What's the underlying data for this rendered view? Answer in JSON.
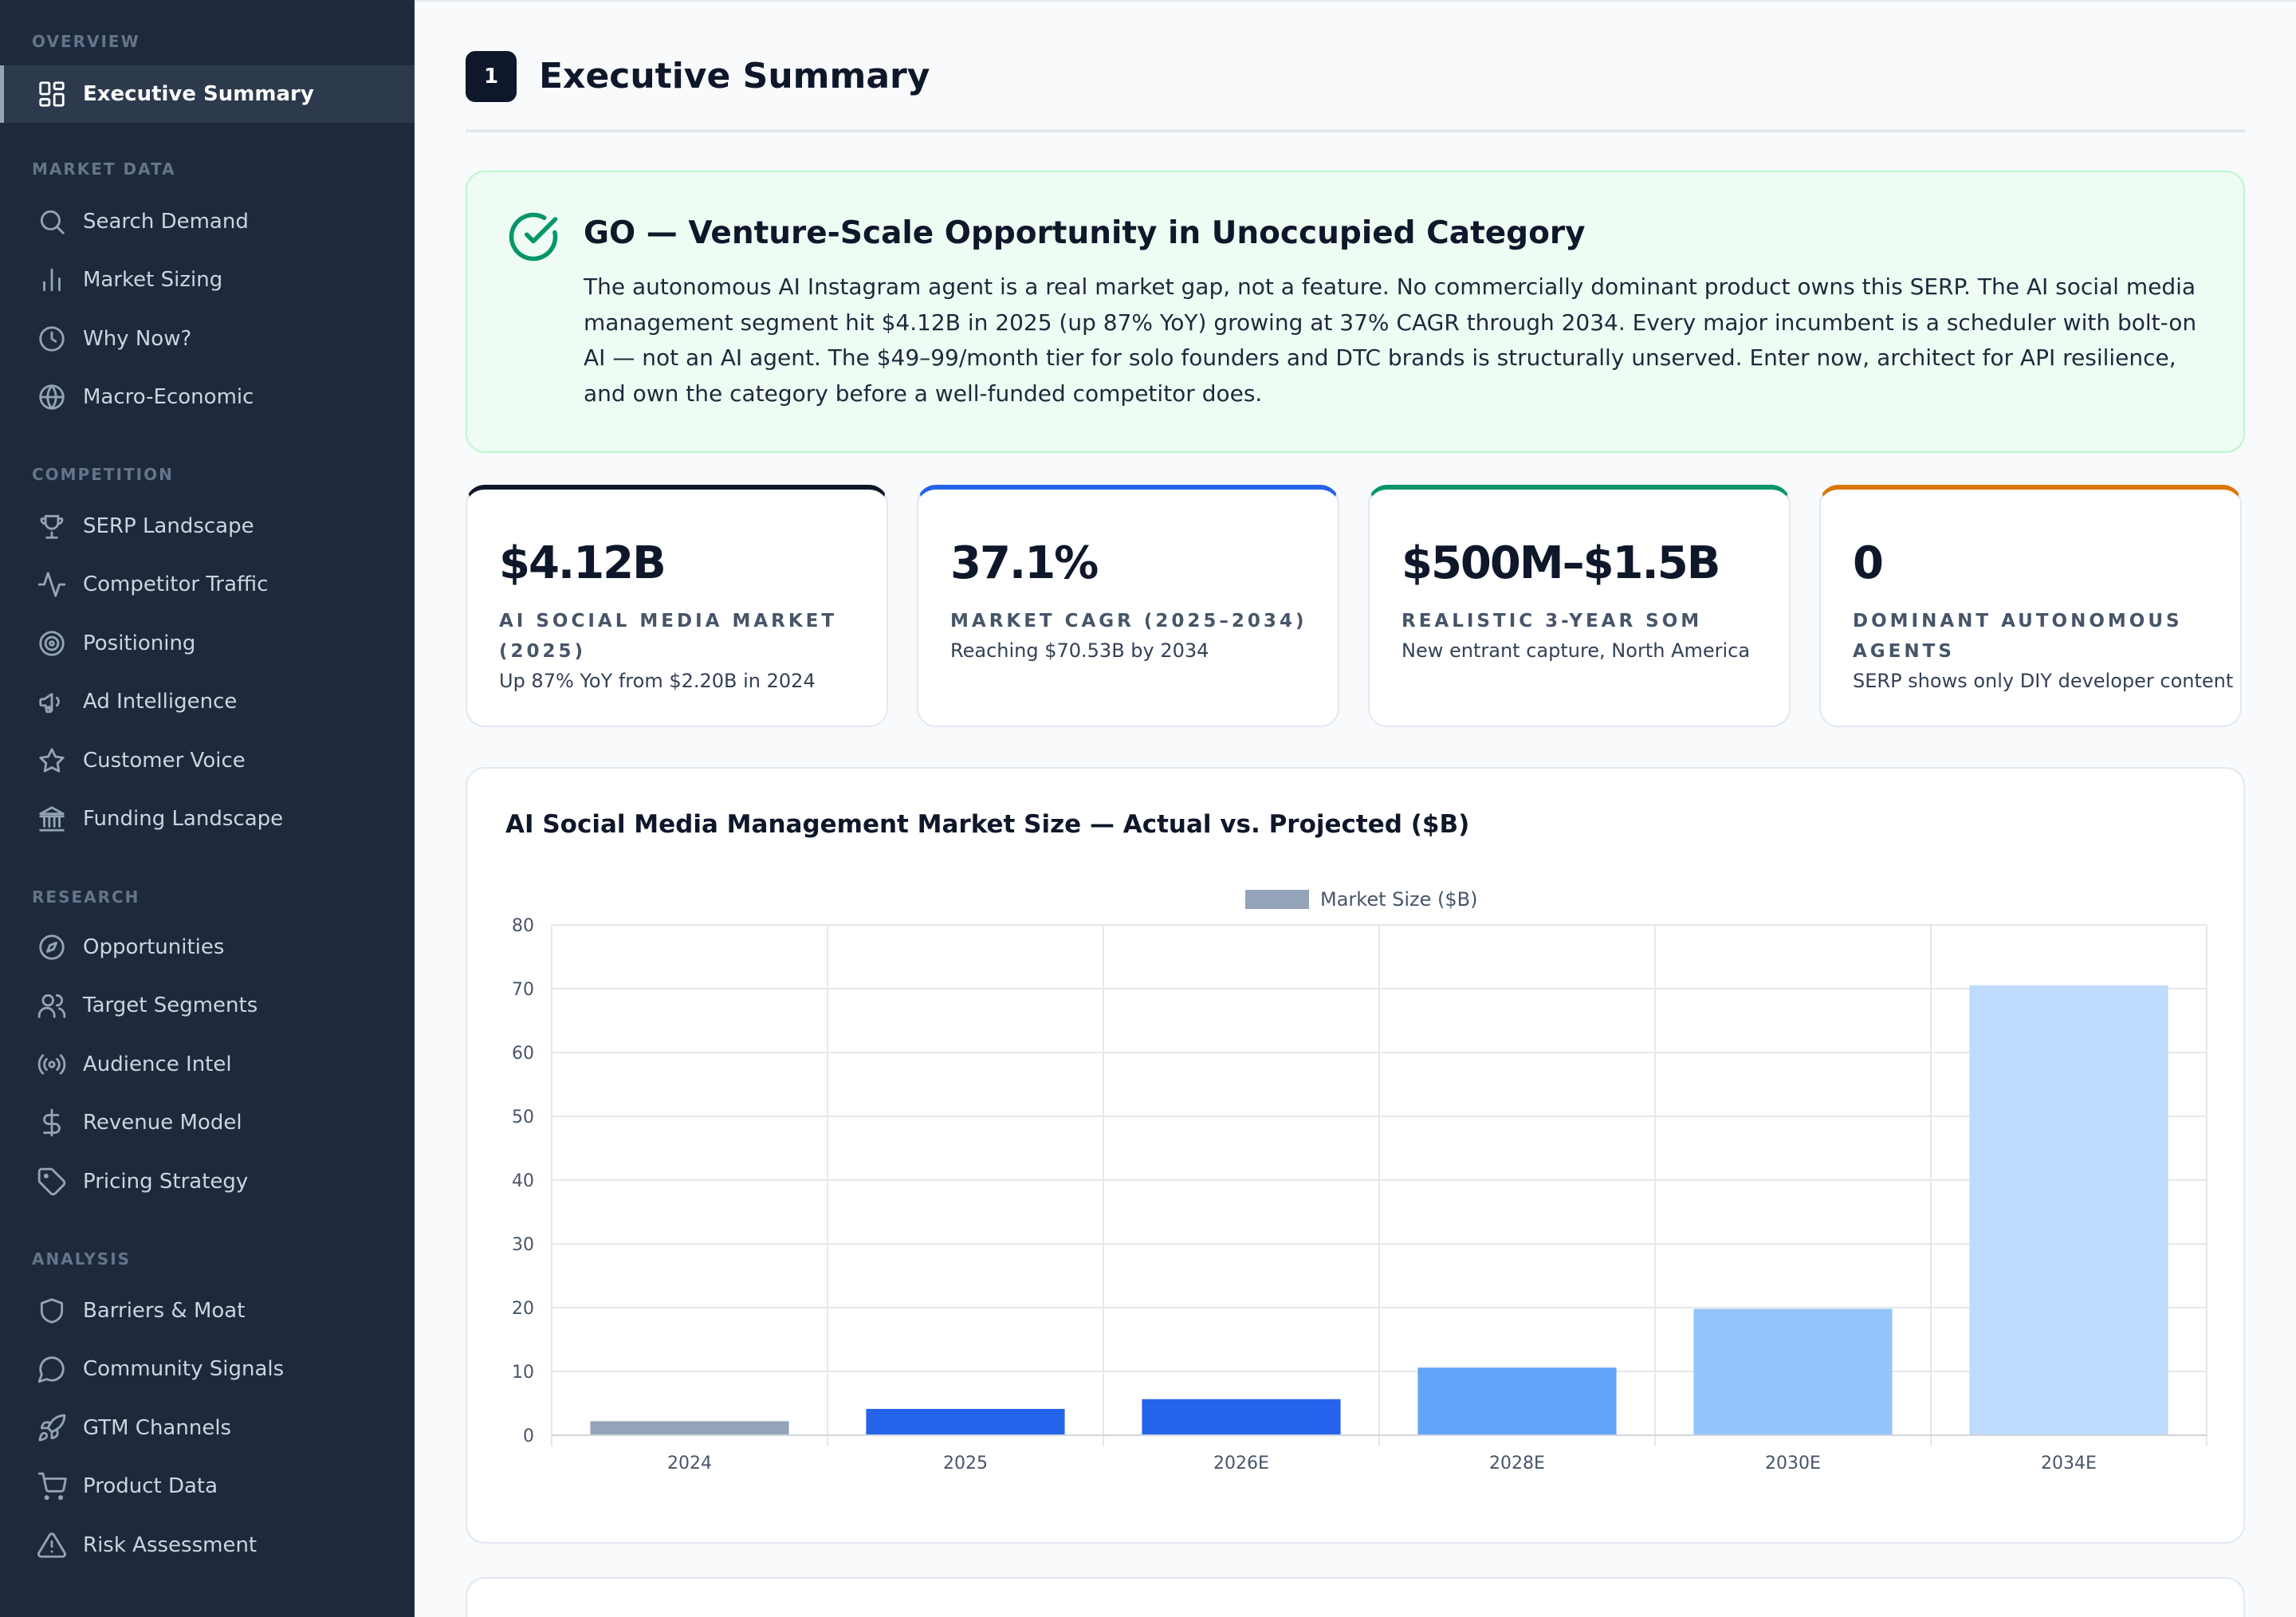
{
  "sidebar": {
    "groups": [
      {
        "title": "OVERVIEW",
        "items": [
          {
            "label": "Executive Summary",
            "icon": "dashboard-icon",
            "active": true
          }
        ]
      },
      {
        "title": "MARKET DATA",
        "items": [
          {
            "label": "Search Demand",
            "icon": "search-icon"
          },
          {
            "label": "Market Sizing",
            "icon": "bar-chart-icon"
          },
          {
            "label": "Why Now?",
            "icon": "clock-icon"
          },
          {
            "label": "Macro-Economic",
            "icon": "globe-icon"
          }
        ]
      },
      {
        "title": "COMPETITION",
        "items": [
          {
            "label": "SERP Landscape",
            "icon": "trophy-icon"
          },
          {
            "label": "Competitor Traffic",
            "icon": "activity-icon"
          },
          {
            "label": "Positioning",
            "icon": "target-icon"
          },
          {
            "label": "Ad Intelligence",
            "icon": "megaphone-icon"
          },
          {
            "label": "Customer Voice",
            "icon": "star-icon"
          },
          {
            "label": "Funding Landscape",
            "icon": "bank-icon"
          }
        ]
      },
      {
        "title": "RESEARCH",
        "items": [
          {
            "label": "Opportunities",
            "icon": "compass-icon"
          },
          {
            "label": "Target Segments",
            "icon": "users-icon"
          },
          {
            "label": "Audience Intel",
            "icon": "radio-icon"
          },
          {
            "label": "Revenue Model",
            "icon": "dollar-icon"
          },
          {
            "label": "Pricing Strategy",
            "icon": "tag-icon"
          }
        ]
      },
      {
        "title": "ANALYSIS",
        "items": [
          {
            "label": "Barriers & Moat",
            "icon": "shield-icon"
          },
          {
            "label": "Community Signals",
            "icon": "chat-bubble-icon"
          },
          {
            "label": "GTM Channels",
            "icon": "rocket-icon"
          },
          {
            "label": "Product Data",
            "icon": "cart-icon"
          },
          {
            "label": "Risk Assessment",
            "icon": "warning-icon"
          }
        ]
      }
    ]
  },
  "section": {
    "number": "1",
    "title": "Executive Summary"
  },
  "verdict": {
    "icon": "check-circle-icon",
    "title": "GO — Venture-Scale Opportunity in Unoccupied Category",
    "body": "The autonomous AI Instagram agent is a real market gap, not a feature. No commercially dominant product owns this SERP. The AI social media management segment hit $4.12B in 2025 (up 87% YoY) growing at 37% CAGR through 2034. Every major incumbent is a scheduler with bolt-on AI — not an AI agent. The $49–99/month tier for solo founders and DTC brands is structurally unserved. Enter now, architect for API resilience, and own the category before a well-funded competitor does."
  },
  "kpis": [
    {
      "value": "$4.12B",
      "label": "AI Social Media Market (2025)",
      "note": "Up 87% YoY from $2.20B in 2024",
      "accent": "#0f172a"
    },
    {
      "value": "37.1%",
      "label": "Market CAGR (2025–2034)",
      "note": "Reaching $70.53B by 2034",
      "accent": "#2563eb"
    },
    {
      "value": "$500M–$1.5B",
      "label": "Realistic 3-Year SOM",
      "note": "New entrant capture, North America",
      "accent": "#059669"
    },
    {
      "value": "0",
      "label": "Dominant Autonomous Agents",
      "note": "SERP shows only DIY developer content",
      "accent": "#d97706"
    }
  ],
  "chart_title": "AI Social Media Management Market Size — Actual vs. Projected ($B)",
  "chart_data": {
    "type": "bar",
    "categories": [
      "2024",
      "2025",
      "2026E",
      "2028E",
      "2030E",
      "2034E"
    ],
    "series": [
      {
        "name": "Market Size ($B)",
        "values": [
          2.2,
          4.12,
          5.65,
          10.6,
          19.8,
          70.53
        ]
      }
    ],
    "bar_colors": [
      "#94a3b8",
      "#2563eb",
      "#2563eb",
      "#60a5fa",
      "#93c5fd",
      "#bfdbfe"
    ],
    "legend_color": "#94a3b8",
    "ylim": [
      0,
      80
    ],
    "yticks": [
      0,
      10,
      20,
      30,
      40,
      50,
      60,
      70,
      80
    ],
    "grid": true,
    "legend_position": "top"
  }
}
